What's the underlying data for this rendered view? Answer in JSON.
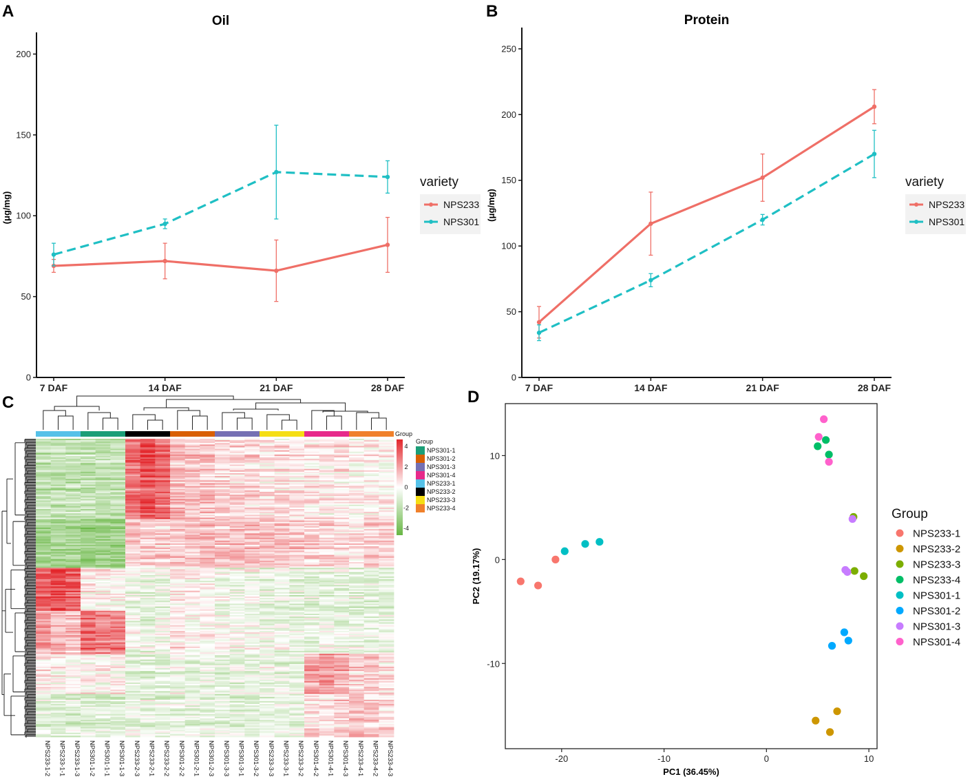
{
  "panels": {
    "A": {
      "letter": "A"
    },
    "B": {
      "letter": "B"
    },
    "C": {
      "letter": "C"
    },
    "D": {
      "letter": "D"
    }
  },
  "chart_data": [
    {
      "id": "A",
      "type": "line",
      "title": "Oil",
      "xlabel": "",
      "ylabel": "(μg/mg)",
      "categories": [
        "7 DAF",
        "14 DAF",
        "21 DAF",
        "28 DAF"
      ],
      "ylim": [
        0,
        210
      ],
      "yticks": [
        0,
        50,
        100,
        150,
        200
      ],
      "legend_title": "variety",
      "series": [
        {
          "name": "NPS233",
          "color": "#EF6F67",
          "dash": false,
          "values": [
            69,
            72,
            66,
            82
          ],
          "err": [
            4,
            11,
            19,
            17
          ]
        },
        {
          "name": "NPS301",
          "color": "#1FBFC4",
          "dash": true,
          "values": [
            76,
            95,
            127,
            124
          ],
          "err": [
            7,
            3,
            29,
            10
          ]
        }
      ]
    },
    {
      "id": "B",
      "type": "line",
      "title": "Protein",
      "xlabel": "",
      "ylabel": "(μg/mg)",
      "categories": [
        "7 DAF",
        "14 DAF",
        "21 DAF",
        "28 DAF"
      ],
      "ylim": [
        0,
        262
      ],
      "yticks": [
        0,
        50,
        100,
        150,
        200,
        250
      ],
      "legend_title": "variety",
      "series": [
        {
          "name": "NPS233",
          "color": "#EF6F67",
          "dash": false,
          "values": [
            42,
            117,
            152,
            206
          ],
          "err": [
            12,
            24,
            18,
            13
          ]
        },
        {
          "name": "NPS301",
          "color": "#1FBFC4",
          "dash": true,
          "values": [
            34,
            74,
            120,
            170
          ],
          "err": [
            6,
            5,
            4,
            18
          ]
        }
      ]
    },
    {
      "id": "C",
      "type": "heatmap",
      "legend_title": "Group",
      "color_scale": {
        "ticks": [
          4,
          2,
          0,
          -2,
          -4
        ],
        "high": "#E3262B",
        "mid": "#FFFFFF",
        "low": "#67B643"
      },
      "group_annotation_label": "Group",
      "groups": [
        {
          "name": "NPS301-1",
          "color": "#1B9E77"
        },
        {
          "name": "NPS301-2",
          "color": "#D95F02"
        },
        {
          "name": "NPS301-3",
          "color": "#7570B3"
        },
        {
          "name": "NPS301-4",
          "color": "#E7298A"
        },
        {
          "name": "NPS233-1",
          "color": "#56C1E8"
        },
        {
          "name": "NPS233-2",
          "color": "#000000"
        },
        {
          "name": "NPS233-3",
          "color": "#F5DE14"
        },
        {
          "name": "NPS233-4",
          "color": "#F0802B"
        }
      ],
      "column_groups": [
        "NPS233-1",
        "NPS301-1",
        "NPS233-2",
        "NPS301-2",
        "NPS301-3",
        "NPS233-3",
        "NPS301-4",
        "NPS233-4"
      ],
      "columns": [
        "NPS233-1-2",
        "NPS233-1-1",
        "NPS233-1-3",
        "NPS301-1-2",
        "NPS301-1-1",
        "NPS301-1-3",
        "NPS233-2-3",
        "NPS233-2-1",
        "NPS233-2-2",
        "NPS301-2-2",
        "NPS301-2-1",
        "NPS301-2-3",
        "NPS301-3-3",
        "NPS301-3-1",
        "NPS301-3-2",
        "NPS233-3-3",
        "NPS233-3-1",
        "NPS233-3-2",
        "NPS301-4-2",
        "NPS301-4-1",
        "NPS301-4-3",
        "NPS233-4-1",
        "NPS233-4-2",
        "NPS233-4-3"
      ],
      "row_blocks": [
        {
          "rows": 56,
          "pattern": [
            -1.6,
            -1.6,
            -1.6,
            -1.6,
            -1.6,
            -1.6,
            2.6,
            3.2,
            2.6,
            1.1,
            0.9,
            1.0,
            0.7,
            0.7,
            0.7,
            0.4,
            0.5,
            0.4,
            0.3,
            0.2,
            0.3,
            0.1,
            0.2,
            0.0
          ]
        },
        {
          "rows": 34,
          "pattern": [
            -2.4,
            -2.4,
            -2.4,
            -2.6,
            -2.6,
            -2.6,
            0.9,
            0.9,
            0.9,
            1.0,
            1.0,
            1.1,
            1.1,
            1.2,
            1.1,
            1.0,
            1.0,
            1.0,
            0.8,
            0.6,
            0.5,
            0.5,
            0.7,
            0.6
          ]
        },
        {
          "rows": 30,
          "pattern": [
            3.0,
            3.5,
            3.0,
            0.3,
            0.2,
            0.1,
            -0.4,
            -0.4,
            -0.4,
            0.4,
            0.2,
            0.1,
            -0.3,
            -0.4,
            -0.2,
            -0.4,
            -0.4,
            -0.5,
            -0.7,
            -0.6,
            -0.6,
            -0.6,
            -0.7,
            -0.7
          ]
        },
        {
          "rows": 30,
          "pattern": [
            1.7,
            1.2,
            1.2,
            2.6,
            2.2,
            2.3,
            -0.3,
            -0.5,
            -0.3,
            0.3,
            -0.2,
            0.0,
            -0.3,
            -0.3,
            -0.2,
            -0.3,
            -0.4,
            -0.4,
            -0.6,
            -0.5,
            -0.6,
            -0.6,
            -0.5,
            -0.6
          ]
        },
        {
          "rows": 28,
          "pattern": [
            0.4,
            0.2,
            0.2,
            0.3,
            0.1,
            0.2,
            -0.6,
            -0.7,
            -0.6,
            -0.4,
            -0.5,
            -0.4,
            -0.6,
            -0.5,
            -0.6,
            -0.4,
            -0.5,
            -0.6,
            1.6,
            1.9,
            1.5,
            0.8,
            1.1,
            0.6
          ]
        },
        {
          "rows": 30,
          "pattern": [
            -0.7,
            -0.9,
            -0.8,
            -0.7,
            -0.7,
            -0.8,
            -0.5,
            -0.6,
            -0.5,
            -0.5,
            -0.7,
            -0.6,
            -0.6,
            -0.6,
            -0.7,
            -0.4,
            -0.6,
            -0.5,
            0.6,
            0.5,
            0.7,
            1.3,
            1.1,
            0.8
          ]
        }
      ]
    },
    {
      "id": "D",
      "type": "scatter",
      "xlabel": "PC1 (36.45%)",
      "ylabel": "PC2 (19.17%)",
      "xlim": [
        -25.5,
        10.8
      ],
      "ylim": [
        -18.2,
        15.0
      ],
      "xticks": [
        -20,
        -10,
        0,
        10
      ],
      "yticks": [
        10,
        0,
        -10
      ],
      "legend_title": "Group",
      "series": [
        {
          "name": "NPS233-1",
          "color": "#F8766D",
          "points": [
            [
              -24.0,
              -2.1
            ],
            [
              -22.3,
              -2.5
            ],
            [
              -20.6,
              0.0
            ]
          ]
        },
        {
          "name": "NPS233-2",
          "color": "#CD9600",
          "points": [
            [
              4.8,
              -15.5
            ],
            [
              6.9,
              -14.6
            ],
            [
              6.2,
              -16.6
            ]
          ]
        },
        {
          "name": "NPS233-3",
          "color": "#7CAE00",
          "points": [
            [
              8.5,
              4.1
            ],
            [
              8.6,
              -1.1
            ],
            [
              9.5,
              -1.6
            ]
          ]
        },
        {
          "name": "NPS233-4",
          "color": "#00BE67",
          "points": [
            [
              5.0,
              10.9
            ],
            [
              5.8,
              11.5
            ],
            [
              6.1,
              10.1
            ]
          ]
        },
        {
          "name": "NPS301-1",
          "color": "#00BFC4",
          "points": [
            [
              -19.7,
              0.8
            ],
            [
              -17.7,
              1.5
            ],
            [
              -16.3,
              1.7
            ]
          ]
        },
        {
          "name": "NPS301-2",
          "color": "#00A9FF",
          "points": [
            [
              7.6,
              -7.0
            ],
            [
              8.0,
              -7.8
            ],
            [
              6.4,
              -8.3
            ]
          ]
        },
        {
          "name": "NPS301-3",
          "color": "#C77CFF",
          "points": [
            [
              8.4,
              3.9
            ],
            [
              7.7,
              -1.0
            ],
            [
              7.9,
              -1.2
            ]
          ]
        },
        {
          "name": "NPS301-4",
          "color": "#FF61CC",
          "points": [
            [
              5.6,
              13.5
            ],
            [
              5.1,
              11.8
            ],
            [
              6.1,
              9.4
            ]
          ]
        }
      ]
    }
  ]
}
